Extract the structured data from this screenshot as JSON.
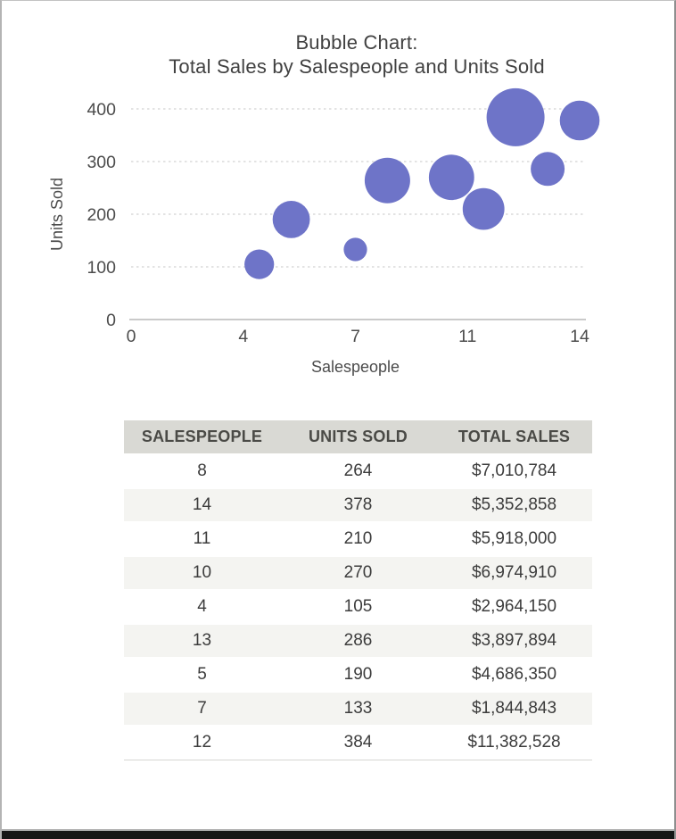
{
  "chart_data": {
    "type": "bubble",
    "title_line1": "Bubble Chart:",
    "title_line2": "Total Sales by Salespeople and Units Sold",
    "xlabel": "Salespeople",
    "ylabel": "Units Sold",
    "xlim": [
      0,
      14
    ],
    "ylim": [
      0,
      400
    ],
    "x_ticks": {
      "positions": [
        0,
        3.5,
        7,
        10.5,
        14
      ],
      "labels": [
        "0",
        "4",
        "7",
        "11",
        "14"
      ]
    },
    "y_ticks": {
      "positions": [
        0,
        100,
        200,
        300,
        400
      ],
      "labels": [
        "0",
        "100",
        "200",
        "300",
        "400"
      ]
    },
    "grid": "horizontal-dashed",
    "legend": "none",
    "bubble_color": "#6E74C8",
    "size_field": "total_sales",
    "points": [
      {
        "salespeople": 8,
        "units_sold": 264,
        "total_sales": 7010784
      },
      {
        "salespeople": 14,
        "units_sold": 378,
        "total_sales": 5352858
      },
      {
        "salespeople": 11,
        "units_sold": 210,
        "total_sales": 5918000
      },
      {
        "salespeople": 10,
        "units_sold": 270,
        "total_sales": 6974910
      },
      {
        "salespeople": 4,
        "units_sold": 105,
        "total_sales": 2964150
      },
      {
        "salespeople": 13,
        "units_sold": 286,
        "total_sales": 3897894
      },
      {
        "salespeople": 5,
        "units_sold": 190,
        "total_sales": 4686350
      },
      {
        "salespeople": 7,
        "units_sold": 133,
        "total_sales": 1844843
      },
      {
        "salespeople": 12,
        "units_sold": 384,
        "total_sales": 11382528
      }
    ]
  },
  "table": {
    "headers": [
      "SALESPEOPLE",
      "UNITS SOLD",
      "TOTAL SALES"
    ],
    "rows": [
      [
        "8",
        "264",
        "$7,010,784"
      ],
      [
        "14",
        "378",
        "$5,352,858"
      ],
      [
        "11",
        "210",
        "$5,918,000"
      ],
      [
        "10",
        "270",
        "$6,974,910"
      ],
      [
        "4",
        "105",
        "$2,964,150"
      ],
      [
        "13",
        "286",
        "$3,897,894"
      ],
      [
        "5",
        "190",
        "$4,686,350"
      ],
      [
        "7",
        "133",
        "$1,844,843"
      ],
      [
        "12",
        "384",
        "$11,382,528"
      ]
    ]
  },
  "colors": {
    "bubble": "#6E74C8",
    "gridline": "#c7c7c7",
    "axis_line": "#ababab",
    "tick_text": "#4c4c4c",
    "axis_title_text": "#4c4c4c",
    "chart_title_text": "#414141",
    "table_header_bg": "#d9d9d4",
    "table_row_alt_bg": "#f4f4f1"
  }
}
